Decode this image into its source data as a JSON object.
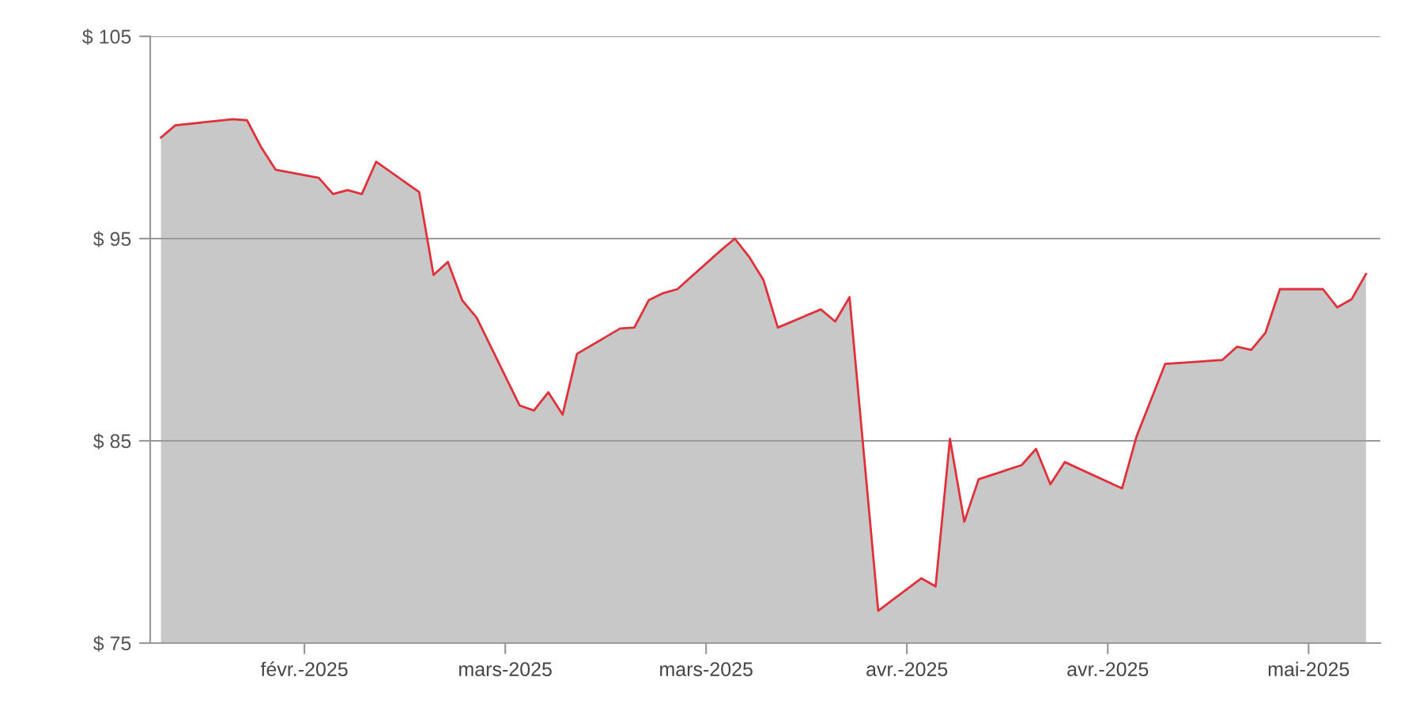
{
  "chart_data": {
    "type": "area",
    "x": [
      "2025-02-13",
      "2025-02-14",
      "2025-02-18",
      "2025-02-19",
      "2025-02-20",
      "2025-02-21",
      "2025-02-24",
      "2025-02-25",
      "2025-02-26",
      "2025-02-27",
      "2025-02-28",
      "2025-03-03",
      "2025-03-04",
      "2025-03-05",
      "2025-03-06",
      "2025-03-07",
      "2025-03-10",
      "2025-03-11",
      "2025-03-12",
      "2025-03-13",
      "2025-03-14",
      "2025-03-17",
      "2025-03-18",
      "2025-03-19",
      "2025-03-20",
      "2025-03-21",
      "2025-03-24",
      "2025-03-25",
      "2025-03-26",
      "2025-03-27",
      "2025-03-28",
      "2025-03-31",
      "2025-04-01",
      "2025-04-02",
      "2025-04-04",
      "2025-04-07",
      "2025-04-08",
      "2025-04-09",
      "2025-04-10",
      "2025-04-11",
      "2025-04-14",
      "2025-04-15",
      "2025-04-16",
      "2025-04-17",
      "2025-04-21",
      "2025-04-22",
      "2025-04-24",
      "2025-04-28",
      "2025-04-29",
      "2025-04-30",
      "2025-05-01",
      "2025-05-02",
      "2025-05-05",
      "2025-05-06",
      "2025-05-07",
      "2025-05-08"
    ],
    "series": [
      {
        "color": "#e0303a",
        "values": [
          100.0,
          100.6,
          100.9,
          100.85,
          99.5,
          98.4,
          98.0,
          97.2,
          97.4,
          97.2,
          98.8,
          97.3,
          93.2,
          93.85,
          91.95,
          91.1,
          86.75,
          86.5,
          87.4,
          86.3,
          89.3,
          90.55,
          90.6,
          91.95,
          92.3,
          92.5,
          94.4,
          95.0,
          94.1,
          92.95,
          90.6,
          91.5,
          90.9,
          92.1,
          76.6,
          78.2,
          77.8,
          85.1,
          81.0,
          83.1,
          83.8,
          84.6,
          82.85,
          83.95,
          82.65,
          85.2,
          88.8,
          89.0,
          89.65,
          89.5,
          90.35,
          92.5,
          92.5,
          91.6,
          92.0,
          93.25
        ]
      }
    ],
    "xlim": [
      "2025-02-12T06:00",
      "2025-05-09T00:00"
    ],
    "xticks": [
      {
        "value": "2025-02-23",
        "label": "févr.-2025"
      },
      {
        "value": "2025-03-09",
        "label": "mars-2025"
      },
      {
        "value": "2025-03-23",
        "label": "mars-2025"
      },
      {
        "value": "2025-04-06",
        "label": "avr.-2025"
      },
      {
        "value": "2025-04-20",
        "label": "avr.-2025"
      },
      {
        "value": "2025-05-04",
        "label": "mai-2025"
      }
    ],
    "ylim": [
      75,
      105
    ],
    "yticks": [
      {
        "value": 75,
        "label": "$ 75"
      },
      {
        "value": 85,
        "label": "$ 85"
      },
      {
        "value": 95,
        "label": "$ 95"
      },
      {
        "value": 105,
        "label": "$ 105"
      }
    ],
    "grid": "y",
    "legend": false,
    "marker": "none",
    "line_style": "solid"
  }
}
